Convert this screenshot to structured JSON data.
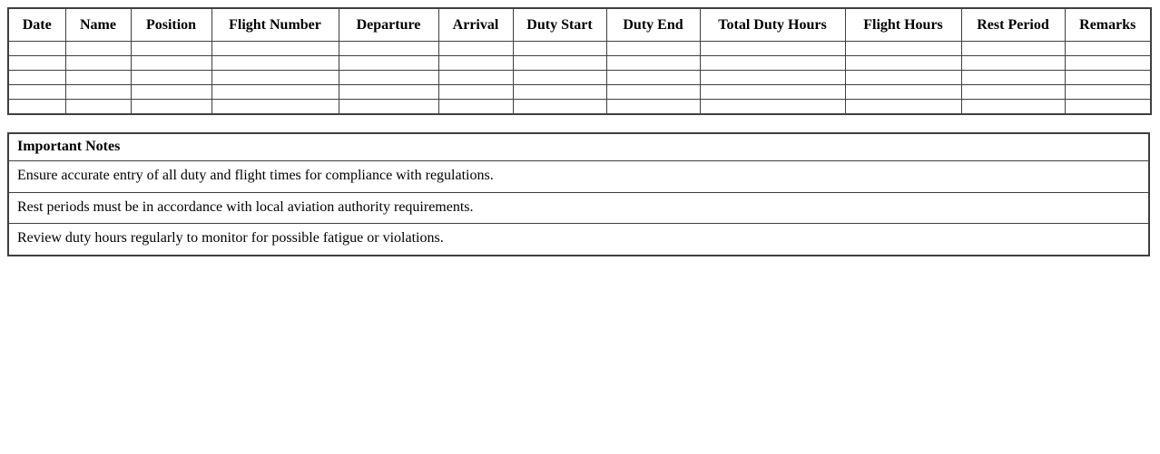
{
  "page": {
    "background_color": "#ffffff",
    "text_color": "#000000",
    "border_color": "#3f3f3f"
  },
  "duty_log_table": {
    "columns": [
      "Date",
      "Name",
      "Position",
      "Flight Number",
      "Departure",
      "Arrival",
      "Duty Start",
      "Duty End",
      "Total Duty Hours",
      "Flight Hours",
      "Rest Period",
      "Remarks"
    ],
    "empty_rows": 5
  },
  "notes_table": {
    "title": "Important Notes",
    "notes": [
      "Ensure accurate entry of all duty and flight times for compliance with regulations.",
      "Rest periods must be in accordance with local aviation authority requirements.",
      "Review duty hours regularly to monitor for possible fatigue or violations."
    ]
  }
}
